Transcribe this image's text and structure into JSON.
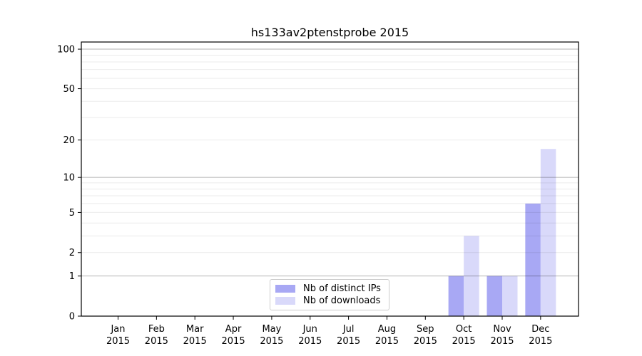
{
  "page": {
    "background": "#ffffff"
  },
  "chart_data": {
    "type": "bar",
    "title": "hs133av2ptenstprobe 2015",
    "yscale": "log1p",
    "ylim": [
      0,
      113.3
    ],
    "yticks": [
      0,
      1,
      2,
      5,
      10,
      20,
      50,
      100
    ],
    "grid": {
      "major": [
        1,
        10,
        100
      ],
      "minor": [
        2,
        3,
        4,
        5,
        6,
        7,
        8,
        9,
        20,
        30,
        40,
        50,
        60,
        70,
        80,
        90
      ]
    },
    "categories": [
      "Jan",
      "Feb",
      "Mar",
      "Apr",
      "May",
      "Jun",
      "Jul",
      "Aug",
      "Sep",
      "Oct",
      "Nov",
      "Dec"
    ],
    "year": "2015",
    "series": [
      {
        "name": "Nb of distinct IPs",
        "color": "#a8a8f4",
        "values": [
          0,
          0,
          0,
          0,
          0,
          0,
          0,
          0,
          0,
          1,
          1,
          6
        ]
      },
      {
        "name": "Nb of downloads",
        "color": "#d9d9fa",
        "values": [
          0,
          0,
          0,
          0,
          0,
          0,
          0,
          0,
          0,
          3,
          1,
          17
        ]
      }
    ],
    "legend_position": "lower center",
    "colors": {
      "spine": "#000000",
      "grid_major": "rgba(0,0,0,0.30)",
      "grid_minor": "rgba(0,0,0,0.08)",
      "text": "#000000"
    }
  }
}
